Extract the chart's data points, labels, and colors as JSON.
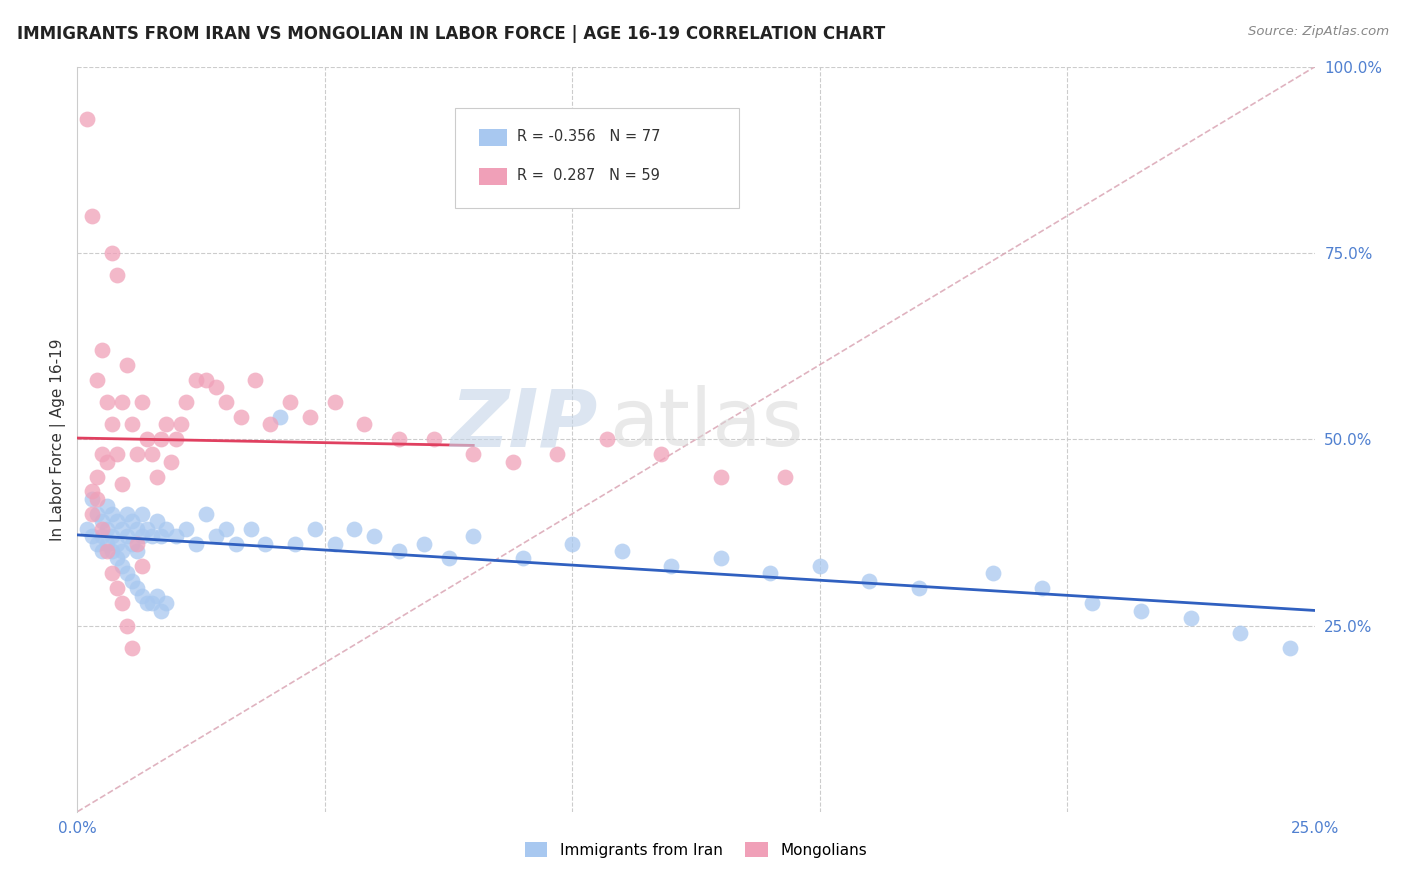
{
  "title": "IMMIGRANTS FROM IRAN VS MONGOLIAN IN LABOR FORCE | AGE 16-19 CORRELATION CHART",
  "source": "Source: ZipAtlas.com",
  "ylabel": "In Labor Force | Age 16-19",
  "xlim": [
    0.0,
    0.25
  ],
  "ylim": [
    0.0,
    1.0
  ],
  "iran_R": "-0.356",
  "iran_N": "77",
  "mongol_R": "0.287",
  "mongol_N": "59",
  "iran_color": "#a8c8f0",
  "mongol_color": "#f0a0b8",
  "iran_line_color": "#3060c0",
  "mongol_line_color": "#e04060",
  "diagonal_color": "#d8a0b0",
  "watermark_zip": "ZIP",
  "watermark_atlas": "atlas",
  "background_color": "#ffffff",
  "grid_color": "#cccccc",
  "iran_x": [
    0.002,
    0.003,
    0.003,
    0.004,
    0.004,
    0.005,
    0.005,
    0.005,
    0.006,
    0.006,
    0.006,
    0.007,
    0.007,
    0.007,
    0.008,
    0.008,
    0.009,
    0.009,
    0.01,
    0.01,
    0.011,
    0.011,
    0.012,
    0.012,
    0.013,
    0.013,
    0.014,
    0.015,
    0.016,
    0.017,
    0.018,
    0.02,
    0.022,
    0.024,
    0.026,
    0.028,
    0.03,
    0.032,
    0.035,
    0.038,
    0.041,
    0.044,
    0.048,
    0.052,
    0.056,
    0.06,
    0.065,
    0.07,
    0.075,
    0.08,
    0.09,
    0.1,
    0.11,
    0.12,
    0.13,
    0.14,
    0.15,
    0.16,
    0.17,
    0.185,
    0.195,
    0.205,
    0.215,
    0.225,
    0.235,
    0.245,
    0.008,
    0.009,
    0.01,
    0.011,
    0.012,
    0.013,
    0.014,
    0.015,
    0.016,
    0.017,
    0.018
  ],
  "iran_y": [
    0.38,
    0.37,
    0.42,
    0.4,
    0.36,
    0.39,
    0.37,
    0.35,
    0.41,
    0.38,
    0.36,
    0.4,
    0.37,
    0.35,
    0.39,
    0.36,
    0.38,
    0.35,
    0.4,
    0.37,
    0.39,
    0.36,
    0.38,
    0.35,
    0.37,
    0.4,
    0.38,
    0.37,
    0.39,
    0.37,
    0.38,
    0.37,
    0.38,
    0.36,
    0.4,
    0.37,
    0.38,
    0.36,
    0.38,
    0.36,
    0.53,
    0.36,
    0.38,
    0.36,
    0.38,
    0.37,
    0.35,
    0.36,
    0.34,
    0.37,
    0.34,
    0.36,
    0.35,
    0.33,
    0.34,
    0.32,
    0.33,
    0.31,
    0.3,
    0.32,
    0.3,
    0.28,
    0.27,
    0.26,
    0.24,
    0.22,
    0.34,
    0.33,
    0.32,
    0.31,
    0.3,
    0.29,
    0.28,
    0.28,
    0.29,
    0.27,
    0.28
  ],
  "mongol_x": [
    0.002,
    0.003,
    0.003,
    0.004,
    0.004,
    0.005,
    0.005,
    0.006,
    0.006,
    0.007,
    0.007,
    0.008,
    0.008,
    0.009,
    0.009,
    0.01,
    0.011,
    0.012,
    0.013,
    0.014,
    0.015,
    0.016,
    0.017,
    0.018,
    0.019,
    0.02,
    0.021,
    0.022,
    0.024,
    0.026,
    0.028,
    0.03,
    0.033,
    0.036,
    0.039,
    0.043,
    0.047,
    0.052,
    0.058,
    0.065,
    0.072,
    0.08,
    0.088,
    0.097,
    0.107,
    0.118,
    0.13,
    0.143,
    0.003,
    0.004,
    0.005,
    0.006,
    0.007,
    0.008,
    0.009,
    0.01,
    0.011,
    0.012,
    0.013
  ],
  "mongol_y": [
    0.93,
    0.8,
    0.43,
    0.58,
    0.45,
    0.62,
    0.48,
    0.55,
    0.47,
    0.75,
    0.52,
    0.72,
    0.48,
    0.55,
    0.44,
    0.6,
    0.52,
    0.48,
    0.55,
    0.5,
    0.48,
    0.45,
    0.5,
    0.52,
    0.47,
    0.5,
    0.52,
    0.55,
    0.58,
    0.58,
    0.57,
    0.55,
    0.53,
    0.58,
    0.52,
    0.55,
    0.53,
    0.55,
    0.52,
    0.5,
    0.5,
    0.48,
    0.47,
    0.48,
    0.5,
    0.48,
    0.45,
    0.45,
    0.4,
    0.42,
    0.38,
    0.35,
    0.32,
    0.3,
    0.28,
    0.25,
    0.22,
    0.36,
    0.33
  ]
}
